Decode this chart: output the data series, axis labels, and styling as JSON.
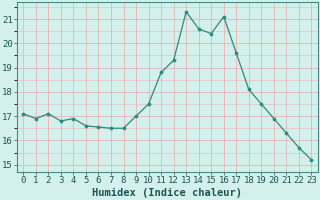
{
  "x": [
    0,
    1,
    2,
    3,
    4,
    5,
    6,
    7,
    8,
    9,
    10,
    11,
    12,
    13,
    14,
    15,
    16,
    17,
    18,
    19,
    20,
    21,
    22,
    23
  ],
  "y": [
    17.1,
    16.9,
    17.1,
    16.8,
    16.9,
    16.6,
    16.55,
    16.5,
    16.5,
    17.0,
    17.5,
    18.8,
    19.3,
    21.3,
    20.6,
    20.4,
    21.1,
    19.6,
    18.1,
    17.5,
    16.9,
    16.3,
    15.7,
    15.2
  ],
  "line_color": "#2e8b7a",
  "marker": "o",
  "marker_size": 2.2,
  "bg_color": "#d4f0ec",
  "grid_color": "#e8b4b4",
  "ylabel_ticks": [
    15,
    16,
    17,
    18,
    19,
    20,
    21
  ],
  "xlabel": "Humidex (Indice chaleur)",
  "xlim": [
    -0.5,
    23.5
  ],
  "ylim": [
    14.7,
    21.7
  ],
  "tick_fontsize": 6.5,
  "xlabel_fontsize": 7.5,
  "spine_color": "#448888"
}
